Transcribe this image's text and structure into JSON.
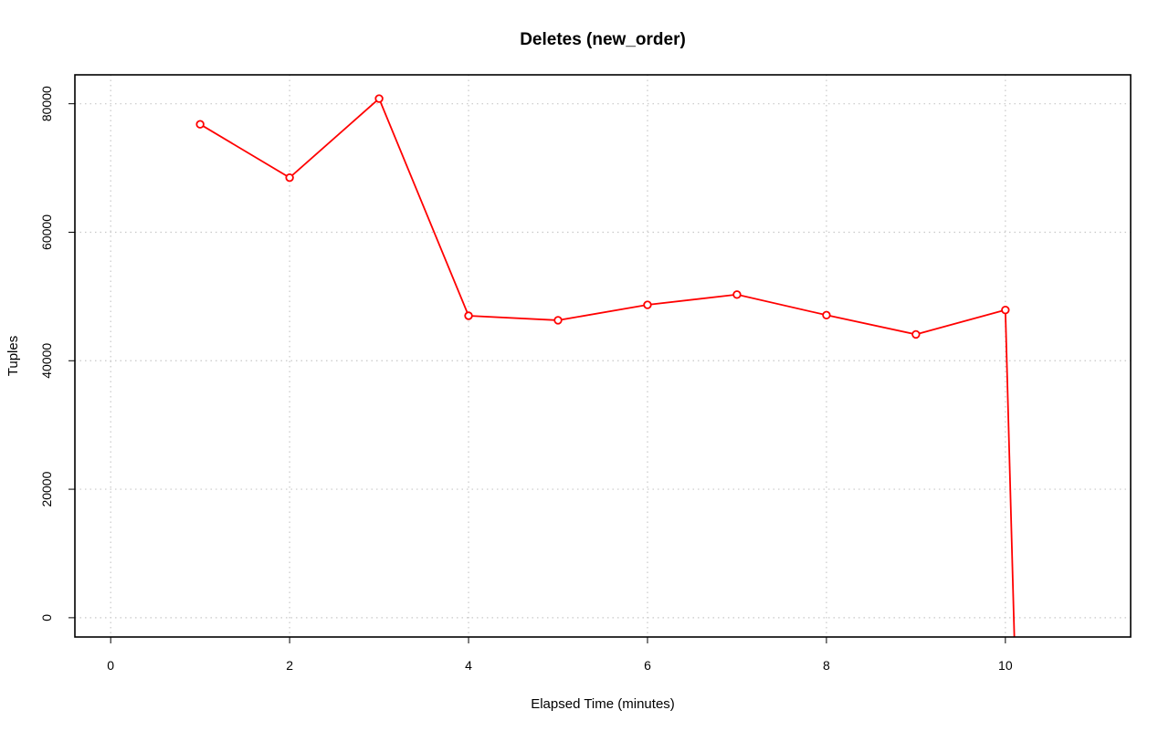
{
  "chart_data": {
    "type": "line",
    "title": "Deletes (new_order)",
    "xlabel": "Elapsed Time (minutes)",
    "ylabel": "Tuples",
    "xlim": [
      -0.4,
      11.4
    ],
    "ylim": [
      -3000,
      84500
    ],
    "x_ticks": [
      0,
      2,
      4,
      6,
      8,
      10
    ],
    "x_tick_labels": [
      "0",
      "2",
      "4",
      "6",
      "8",
      "10"
    ],
    "y_ticks": [
      0,
      20000,
      40000,
      60000,
      80000
    ],
    "y_tick_labels": [
      "0",
      "20000",
      "40000",
      "60000",
      "80000"
    ],
    "grid": true,
    "legend": "none",
    "series": [
      {
        "color": "#ff0000",
        "marker": "circle",
        "x": [
          1,
          2,
          3,
          4,
          5,
          6,
          7,
          8,
          9,
          10
        ],
        "y": [
          76800,
          68500,
          80800,
          47000,
          46300,
          48700,
          50300,
          47100,
          44100,
          47900
        ]
      }
    ],
    "tail_line": {
      "x": [
        10,
        10.1
      ],
      "y": [
        47900,
        -3000
      ]
    }
  }
}
